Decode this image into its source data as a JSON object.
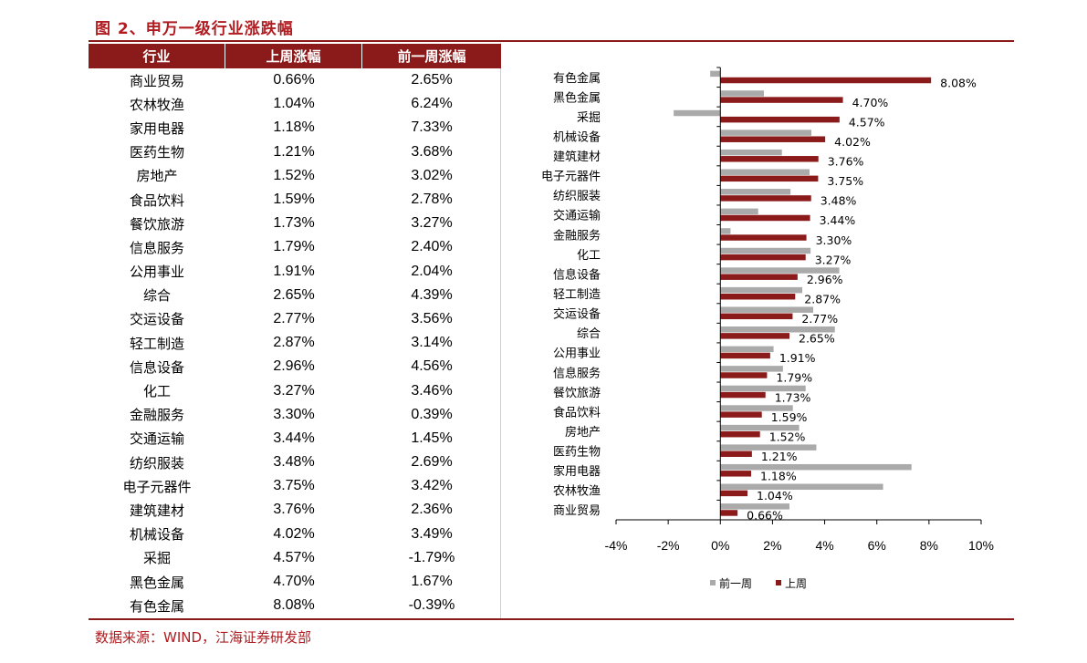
{
  "figure_title": "图 2、申万一级行业涨跌幅",
  "source": "数据来源：WIND，江海证券研发部",
  "colors": {
    "accent": "#8b1a1a",
    "title_red": "#b01c20",
    "prev_week_bar": "#aaaaaa",
    "last_week_bar": "#8b1a1a"
  },
  "table": {
    "headers": [
      "行业",
      "上周涨幅",
      "前一周涨幅"
    ],
    "rows": [
      [
        "商业贸易",
        "0.66%",
        "2.65%"
      ],
      [
        "农林牧渔",
        "1.04%",
        "6.24%"
      ],
      [
        "家用电器",
        "1.18%",
        "7.33%"
      ],
      [
        "医药生物",
        "1.21%",
        "3.68%"
      ],
      [
        "房地产",
        "1.52%",
        "3.02%"
      ],
      [
        "食品饮料",
        "1.59%",
        "2.78%"
      ],
      [
        "餐饮旅游",
        "1.73%",
        "3.27%"
      ],
      [
        "信息服务",
        "1.79%",
        "2.40%"
      ],
      [
        "公用事业",
        "1.91%",
        "2.04%"
      ],
      [
        "综合",
        "2.65%",
        "4.39%"
      ],
      [
        "交运设备",
        "2.77%",
        "3.56%"
      ],
      [
        "轻工制造",
        "2.87%",
        "3.14%"
      ],
      [
        "信息设备",
        "2.96%",
        "4.56%"
      ],
      [
        "化工",
        "3.27%",
        "3.46%"
      ],
      [
        "金融服务",
        "3.30%",
        "0.39%"
      ],
      [
        "交通运输",
        "3.44%",
        "1.45%"
      ],
      [
        "纺织服装",
        "3.48%",
        "2.69%"
      ],
      [
        "电子元器件",
        "3.75%",
        "3.42%"
      ],
      [
        "建筑建材",
        "3.76%",
        "2.36%"
      ],
      [
        "机械设备",
        "4.02%",
        "3.49%"
      ],
      [
        "采掘",
        "4.57%",
        "-1.79%"
      ],
      [
        "黑色金属",
        "4.70%",
        "1.67%"
      ],
      [
        "有色金属",
        "8.08%",
        "-0.39%"
      ]
    ]
  },
  "chart_data": {
    "type": "bar",
    "orientation": "horizontal",
    "categories": [
      "有色金属",
      "黑色金属",
      "采掘",
      "机械设备",
      "建筑建材",
      "电子元器件",
      "纺织服装",
      "交通运输",
      "金融服务",
      "化工",
      "信息设备",
      "轻工制造",
      "交运设备",
      "综合",
      "公用事业",
      "信息服务",
      "餐饮旅游",
      "食品饮料",
      "房地产",
      "医药生物",
      "家用电器",
      "农林牧渔",
      "商业贸易"
    ],
    "series": [
      {
        "name": "前一周",
        "values": [
          -0.39,
          1.67,
          -1.79,
          3.49,
          2.36,
          3.42,
          2.69,
          1.45,
          0.39,
          3.46,
          4.56,
          3.14,
          3.56,
          4.39,
          2.04,
          2.4,
          3.27,
          2.78,
          3.02,
          3.68,
          7.33,
          6.24,
          2.65
        ]
      },
      {
        "name": "上周",
        "values": [
          8.08,
          4.7,
          4.57,
          4.02,
          3.76,
          3.75,
          3.48,
          3.44,
          3.3,
          3.27,
          2.96,
          2.87,
          2.77,
          2.65,
          1.91,
          1.79,
          1.73,
          1.59,
          1.52,
          1.21,
          1.18,
          1.04,
          0.66
        ]
      }
    ],
    "data_labels": [
      "8.08%",
      "4.70%",
      "4.57%",
      "4.02%",
      "3.76%",
      "3.75%",
      "3.48%",
      "3.44%",
      "3.30%",
      "3.27%",
      "2.96%",
      "2.87%",
      "2.77%",
      "2.65%",
      "1.91%",
      "1.79%",
      "1.73%",
      "1.59%",
      "1.52%",
      "1.21%",
      "1.18%",
      "1.04%",
      "0.66%"
    ],
    "xlim": [
      -4,
      10
    ],
    "xticks": [
      -4,
      -2,
      0,
      2,
      4,
      6,
      8,
      10
    ],
    "xtick_labels": [
      "-4%",
      "-2%",
      "0%",
      "2%",
      "4%",
      "6%",
      "8%",
      "10%"
    ],
    "legend_position": "bottom",
    "grid": false
  }
}
